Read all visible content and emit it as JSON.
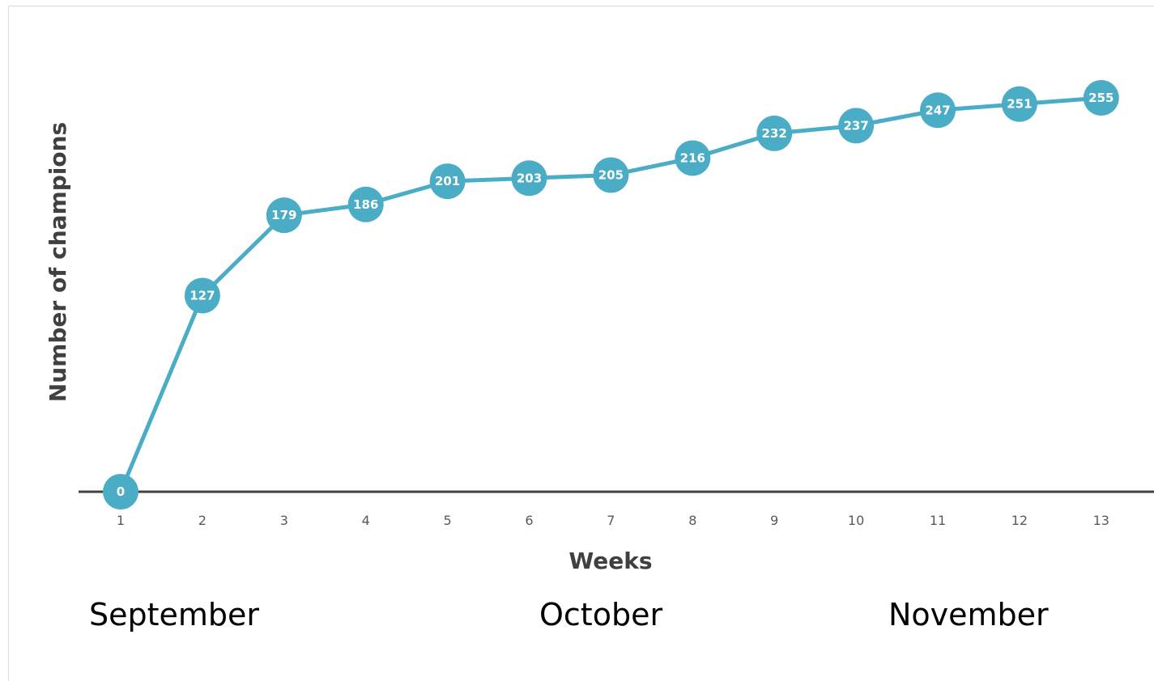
{
  "chart_data": {
    "type": "line",
    "xlabel": "Weeks",
    "ylabel": "Number of champions",
    "x": [
      1,
      2,
      3,
      4,
      5,
      6,
      7,
      8,
      9,
      10,
      11,
      12,
      13
    ],
    "series": [
      {
        "values": [
          0,
          127,
          179,
          186,
          201,
          203,
          205,
          216,
          232,
          237,
          247,
          251,
          255
        ]
      }
    ],
    "ylim": [
      0,
      255
    ],
    "data_labels": true,
    "grid": false,
    "legend": "none",
    "colors": {
      "line": "#4bacc6",
      "axis": "#404040",
      "label_text": "#ffffff"
    }
  },
  "months": [
    "September",
    "October",
    "November"
  ]
}
